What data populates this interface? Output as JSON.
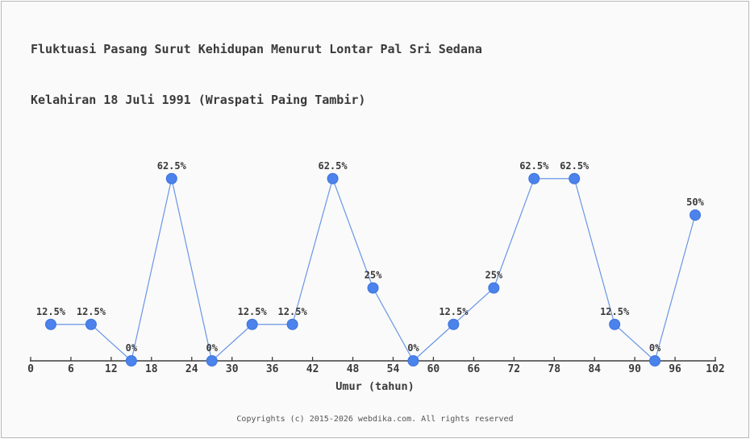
{
  "widget": {
    "title_line1": "Fluktuasi Pasang Surut Kehidupan Menurut Lontar Pal Sri Sedana",
    "title_line2": "Kelahiran 18 Juli 1991 (Wraspati Paing Tambir)",
    "footer": "Copyrights (c) 2015-2026 webdika.com. All rights reserved"
  },
  "colors": {
    "marker_fill": "#4b82eb",
    "marker_stroke": "#3d74dd",
    "line": "#6996e6",
    "axis": "#3c3c3c",
    "text": "#3a3a3a",
    "footer_text": "#555555",
    "background": "#fafafa",
    "border": "#b7b7b7"
  },
  "chart_data": {
    "type": "line",
    "title": "Fluktuasi Pasang Surut Kehidupan Menurut Lontar Pal Sri Sedana Kelahiran 18 Juli 1991 (Wraspati Paing Tambir)",
    "xlabel": "Umur (tahun)",
    "ylabel": "",
    "x": [
      3,
      9,
      15,
      21,
      27,
      33,
      39,
      45,
      51,
      57,
      63,
      69,
      75,
      81,
      87,
      93,
      99
    ],
    "values": [
      12.5,
      12.5,
      0,
      62.5,
      0,
      12.5,
      12.5,
      62.5,
      25,
      0,
      12.5,
      25,
      62.5,
      62.5,
      12.5,
      0,
      50
    ],
    "point_labels": [
      "12.5%",
      "12.5%",
      "0%",
      "62.5%",
      "0%",
      "12.5%",
      "12.5%",
      "62.5%",
      "25%",
      "0%",
      "12.5%",
      "25%",
      "62.5%",
      "62.5%",
      "12.5%",
      "0%",
      "50%"
    ],
    "x_ticks": [
      0,
      6,
      12,
      18,
      24,
      30,
      36,
      42,
      48,
      54,
      60,
      66,
      72,
      78,
      84,
      90,
      96,
      102
    ],
    "xlim": [
      0,
      102
    ],
    "ylim": [
      0,
      100
    ],
    "grid": false,
    "legend": "none"
  }
}
